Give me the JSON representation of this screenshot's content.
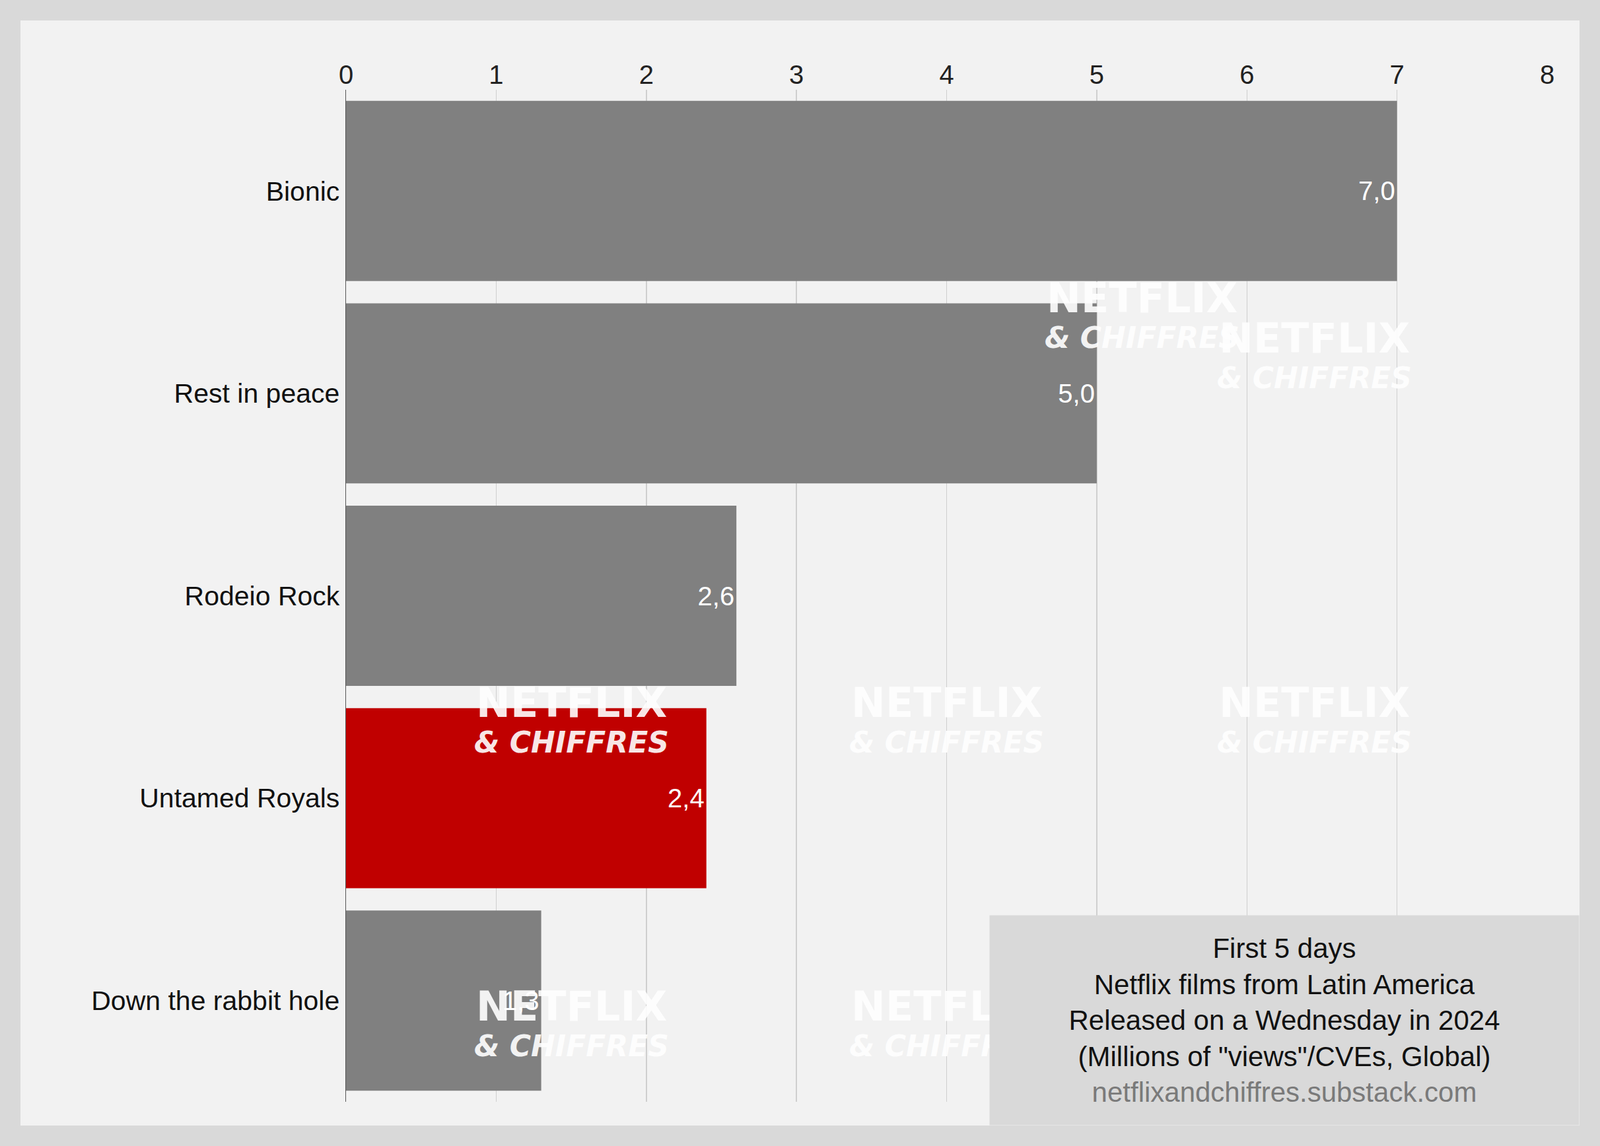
{
  "chart_data": {
    "type": "bar",
    "orientation": "horizontal",
    "categories": [
      "Bionic",
      "Rest in peace",
      "Rodeio Rock",
      "Untamed Royals",
      "Down the rabbit hole"
    ],
    "values": [
      7.0,
      5.0,
      2.6,
      2.4,
      1.3
    ],
    "value_labels": [
      "7,0",
      "5,0",
      "2,6",
      "2,4",
      "1,3"
    ],
    "colors": [
      "#808080",
      "#808080",
      "#808080",
      "#c00000",
      "#808080"
    ],
    "data_labels": true,
    "xlim": [
      0,
      8
    ],
    "xticks": [
      0,
      1,
      2,
      3,
      4,
      5,
      6,
      7,
      8
    ],
    "grid": true,
    "annotations": [
      "First 5 days",
      "Netflix films from Latin America",
      "Released on a Wednesday in 2024",
      "(Millions of \"views\"/CVEs, Global)"
    ],
    "source": "netflixandchiffres.substack.com",
    "watermark": [
      "NETFLIX",
      "& CHIFFRES"
    ]
  }
}
